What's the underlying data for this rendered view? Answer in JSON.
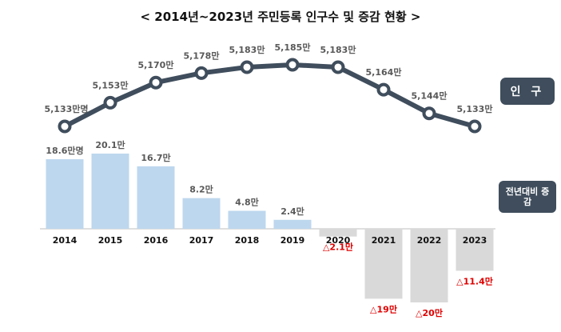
{
  "title": "< 2014년~2023년 주민등록 인구수 및 증감 현황 >",
  "badges": {
    "population": "인 구",
    "change": "전년대비 증감"
  },
  "colors": {
    "line": "#3f4d5c",
    "positive_bar": "#bdd7ee",
    "negative_bar": "#d9d9d9",
    "negative_label": "#e00000",
    "label": "#595959",
    "baseline": "#bfbfbf"
  },
  "chart_data": [
    {
      "type": "line",
      "name": "population",
      "categories": [
        "2014",
        "2015",
        "2016",
        "2017",
        "2018",
        "2019",
        "2020",
        "2021",
        "2022",
        "2023"
      ],
      "values": [
        5133,
        5153,
        5170,
        5178,
        5183,
        5185,
        5183,
        5164,
        5144,
        5133
      ],
      "unit": "만명",
      "labels": [
        "5,133만명",
        "5,153만",
        "5,170만",
        "5,178만",
        "5,183만",
        "5,185만",
        "5,183만",
        "5,164만",
        "5,144만",
        "5,133만"
      ]
    },
    {
      "type": "bar",
      "name": "change",
      "categories": [
        "2014",
        "2015",
        "2016",
        "2017",
        "2018",
        "2019",
        "2020",
        "2021",
        "2022",
        "2023"
      ],
      "values": [
        18.6,
        20.1,
        16.7,
        8.2,
        4.8,
        2.4,
        -2.1,
        -19,
        -20,
        -11.4
      ],
      "unit": "만명",
      "labels": [
        "18.6만명",
        "20.1만",
        "16.7만",
        "8.2만",
        "4.8만",
        "2.4만",
        "△2.1만",
        "△19만",
        "△20만",
        "△11.4만"
      ]
    }
  ]
}
